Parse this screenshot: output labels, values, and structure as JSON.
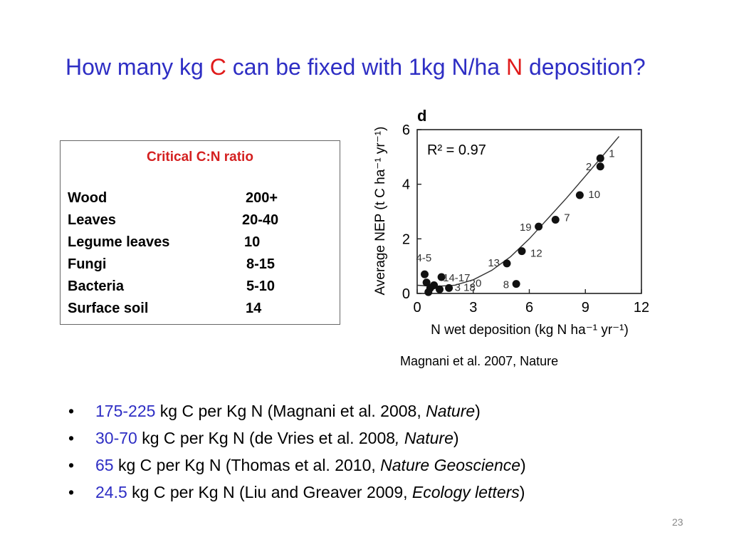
{
  "slide": {
    "title": {
      "p1": "How many kg ",
      "c": "C",
      "p2": " can be fixed with 1kg N/ha ",
      "n": "N",
      "p3": " deposition?"
    },
    "page_number": "23",
    "colors": {
      "title_blue": "#2e2ec4",
      "accent_red": "#e01b1b"
    }
  },
  "cn_table": {
    "title": "Critical C:N ratio",
    "rows": [
      {
        "label": "Wood",
        "value": "200+"
      },
      {
        "label": "Leaves",
        "value": "20-40"
      },
      {
        "label": "Legume leaves",
        "value": "10"
      },
      {
        "label": "Fungi",
        "value": "8-15"
      },
      {
        "label": "Bacteria",
        "value": "5-10"
      },
      {
        "label": "Surface soil",
        "value": "14"
      }
    ]
  },
  "caption": "Magnani et al. 2007, Nature",
  "bullets": [
    {
      "num": "175-225",
      "text": " kg C per Kg N (Magnani et al. 2008, ",
      "ital": "Nature",
      "end": ")"
    },
    {
      "num": "30-70",
      "text": " kg C per Kg N  (de Vries et al. 2008",
      "ital": ", Nature",
      "end": ")"
    },
    {
      "num": "65",
      "text": " kg C per Kg N (Thomas et al. 2010, ",
      "ital": "Nature Geoscience",
      "end": ")"
    },
    {
      "num": "24.5",
      "text": " kg C per Kg N (Liu and Greaver 2009, ",
      "ital": "Ecology letters",
      "end": ")"
    }
  ],
  "chart_data": {
    "type": "scatter",
    "panel_label": "d",
    "annotation": "R² = 0.97",
    "xlabel": "N wet deposition (kg N ha⁻¹ yr⁻¹)",
    "ylabel": "Average NEP (t C ha⁻¹ yr⁻¹)",
    "xlim": [
      0,
      12
    ],
    "ylim": [
      0,
      6
    ],
    "xticks": [
      0,
      3,
      6,
      9,
      12
    ],
    "yticks": [
      0,
      2,
      4,
      6
    ],
    "points": [
      {
        "x": 9.8,
        "y": 4.95,
        "label": "1"
      },
      {
        "x": 9.8,
        "y": 4.65,
        "label": "2"
      },
      {
        "x": 8.7,
        "y": 3.6,
        "label": "10"
      },
      {
        "x": 7.4,
        "y": 2.7,
        "label": "7"
      },
      {
        "x": 6.5,
        "y": 2.45,
        "label": "19"
      },
      {
        "x": 5.6,
        "y": 1.55,
        "label": "12"
      },
      {
        "x": 4.8,
        "y": 1.1,
        "label": "13"
      },
      {
        "x": 5.3,
        "y": 0.35,
        "label": "8"
      },
      {
        "x": 0.4,
        "y": 0.7,
        "label": "4-5"
      },
      {
        "x": 1.3,
        "y": 0.6,
        "label": "14-17"
      },
      {
        "x": 0.5,
        "y": 0.4,
        "label": ""
      },
      {
        "x": 0.7,
        "y": 0.2,
        "label": ""
      },
      {
        "x": 0.9,
        "y": 0.3,
        "label": "20"
      },
      {
        "x": 1.2,
        "y": 0.15,
        "label": ""
      },
      {
        "x": 1.7,
        "y": 0.2,
        "label": "3 18"
      },
      {
        "x": 0.6,
        "y": 0.05,
        "label": ""
      }
    ],
    "fit_curve": {
      "x": [
        0,
        1,
        2,
        3,
        4,
        5,
        6,
        7,
        8,
        9,
        10,
        10.8
      ],
      "y": [
        0.3,
        0.26,
        0.3,
        0.5,
        0.85,
        1.35,
        2.0,
        2.75,
        3.5,
        4.3,
        5.1,
        5.75
      ]
    }
  }
}
